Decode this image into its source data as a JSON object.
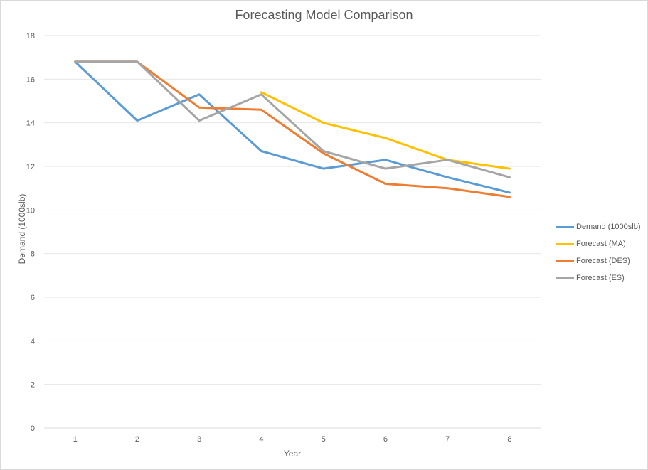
{
  "chart_data": {
    "type": "line",
    "title": "Forecasting Model Comparison",
    "xlabel": "Year",
    "ylabel": "Demand (1000slb)",
    "categories": [
      "1",
      "2",
      "3",
      "4",
      "5",
      "6",
      "7",
      "8"
    ],
    "ylim": [
      0,
      18
    ],
    "yticks": [
      "0",
      "2",
      "4",
      "6",
      "8",
      "10",
      "12",
      "14",
      "16",
      "18"
    ],
    "grid": "horizontal",
    "legend_position": "right",
    "series": [
      {
        "name": "Demand (1000slb)",
        "color": "#5b9bd5",
        "values": [
          16.8,
          14.1,
          15.3,
          12.7,
          11.9,
          12.3,
          11.5,
          10.8
        ]
      },
      {
        "name": "Forecast (MA)",
        "color": "#ffc000",
        "values": [
          null,
          null,
          null,
          15.4,
          14.0,
          13.3,
          12.3,
          11.9
        ]
      },
      {
        "name": "Forecast (DES)",
        "color": "#ed7d31",
        "values": [
          16.8,
          16.8,
          14.7,
          14.6,
          12.6,
          11.2,
          11.0,
          10.6
        ]
      },
      {
        "name": "Forecast (ES)",
        "color": "#a5a5a5",
        "values": [
          16.8,
          16.8,
          14.1,
          15.3,
          12.7,
          11.9,
          12.3,
          11.5
        ]
      }
    ]
  }
}
